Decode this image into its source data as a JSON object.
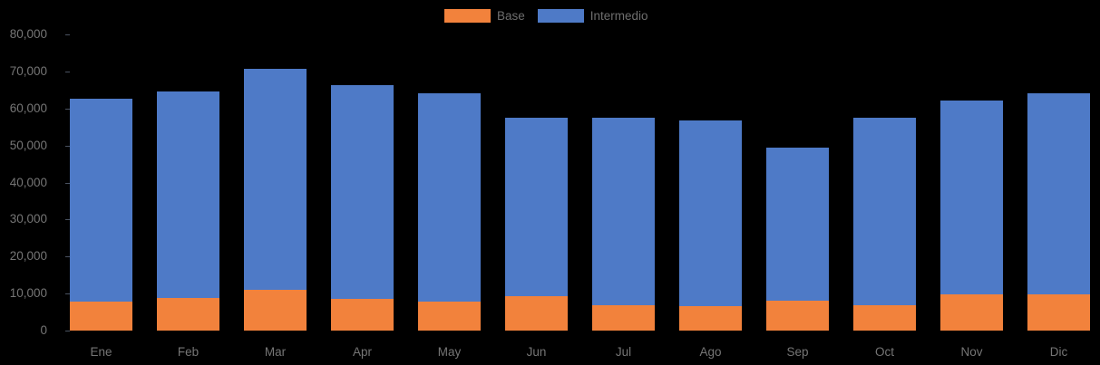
{
  "chart_data": {
    "type": "bar",
    "stacked": true,
    "title": "",
    "xlabel": "",
    "ylabel": "",
    "categories": [
      "Ene",
      "Feb",
      "Mar",
      "Apr",
      "May",
      "Jun",
      "Jul",
      "Ago",
      "Sep",
      "Oct",
      "Nov",
      "Dic"
    ],
    "series": [
      {
        "name": "Base",
        "color": "#F2823C",
        "values": [
          7800,
          8700,
          10900,
          8500,
          7900,
          9200,
          6900,
          6700,
          8000,
          6900,
          9900,
          9900
        ]
      },
      {
        "name": "Intermedio",
        "color": "#4E7AC7",
        "values": [
          54800,
          56000,
          59800,
          57800,
          56300,
          48400,
          50600,
          50000,
          41500,
          50600,
          52200,
          54300
        ]
      }
    ],
    "totals": [
      62600,
      64700,
      70700,
      66300,
      64200,
      57600,
      57500,
      56700,
      49500,
      57500,
      62100,
      64200
    ],
    "ylim": [
      0,
      80000
    ],
    "ytick_step": 10000,
    "ytick_labels": [
      "0",
      "10,000",
      "20,000",
      "30,000",
      "40,000",
      "50,000",
      "60,000",
      "70,000",
      "80,000"
    ],
    "legend_position": "top-center",
    "grid": false,
    "background_color": "#000000",
    "axis_text_color": "#757575",
    "legend_text_color": "#6e6e6e"
  }
}
